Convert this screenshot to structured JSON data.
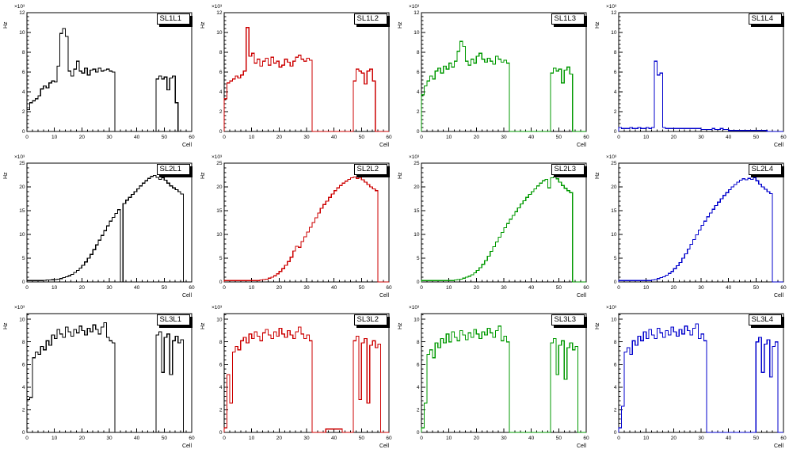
{
  "page": {
    "background": "#ffffff"
  },
  "labels": {
    "x_title": "Cell",
    "y_title": "Hz",
    "multiplier": "×10³"
  },
  "chart_data": [
    {
      "type": "bar",
      "title": "SL1L1",
      "color": "#000000",
      "xlabel": "Cell",
      "ylabel": "Hz",
      "y_scale": "×10³",
      "xlim": [
        0,
        60
      ],
      "ylim": [
        0,
        12
      ],
      "ytick": 2,
      "values": [
        2.2,
        2.9,
        3.1,
        3.3,
        3.6,
        4.3,
        4.6,
        4.4,
        4.9,
        5.1,
        5.0,
        6.6,
        9.9,
        10.4,
        9.6,
        6.1,
        5.6,
        6.3,
        7.1,
        6.1,
        5.9,
        6.4,
        5.7,
        6.2,
        6.3,
        6.0,
        6.4,
        6.1,
        6.2,
        6.3,
        6.1,
        6.0,
        0,
        0,
        0,
        0,
        0,
        0,
        0,
        0,
        0,
        0,
        0,
        0,
        0,
        0,
        0,
        5.3,
        5.6,
        5.3,
        5.5,
        4.2,
        5.4,
        5.6,
        2.9,
        0,
        0,
        0,
        0,
        0
      ]
    },
    {
      "type": "bar",
      "title": "SL1L2",
      "color": "#cc0000",
      "xlabel": "Cell",
      "ylabel": "Hz",
      "y_scale": "×10³",
      "xlim": [
        0,
        60
      ],
      "ylim": [
        0,
        12
      ],
      "ytick": 2,
      "values": [
        3.3,
        4.9,
        5.1,
        5.3,
        5.6,
        5.4,
        5.7,
        6.1,
        10.5,
        7.6,
        7.9,
        6.9,
        7.3,
        6.6,
        7.1,
        7.4,
        6.7,
        7.5,
        6.9,
        7.1,
        6.5,
        6.7,
        7.3,
        7.0,
        6.6,
        7.1,
        7.5,
        7.7,
        7.3,
        7.1,
        7.4,
        7.2,
        0,
        0,
        0,
        0,
        0,
        0,
        0,
        0,
        0,
        0,
        0,
        0,
        0,
        0,
        0,
        5.1,
        6.3,
        6.1,
        5.9,
        4.8,
        6.1,
        6.3,
        5.1,
        0,
        0,
        0,
        0,
        0
      ]
    },
    {
      "type": "bar",
      "title": "SL1L3",
      "color": "#009900",
      "xlabel": "Cell",
      "ylabel": "Hz",
      "y_scale": "×10³",
      "xlim": [
        0,
        60
      ],
      "ylim": [
        0,
        12
      ],
      "ytick": 2,
      "values": [
        3.7,
        4.6,
        5.1,
        5.6,
        5.3,
        6.1,
        6.4,
        5.9,
        6.6,
        6.3,
        6.9,
        6.5,
        7.1,
        8.1,
        9.1,
        8.6,
        7.1,
        6.7,
        7.3,
        6.9,
        7.6,
        7.9,
        7.3,
        7.0,
        7.4,
        7.1,
        6.8,
        7.6,
        7.3,
        7.0,
        7.2,
        6.9,
        0,
        0,
        0,
        0,
        0,
        0,
        0,
        0,
        0,
        0,
        0,
        0,
        0,
        0,
        0,
        5.9,
        6.4,
        6.1,
        6.3,
        4.9,
        6.2,
        6.5,
        5.8,
        0,
        0,
        0,
        0,
        0
      ]
    },
    {
      "type": "bar",
      "title": "SL1L4",
      "color": "#0000cc",
      "xlabel": "Cell",
      "ylabel": "Hz",
      "y_scale": "×10³",
      "xlim": [
        0,
        60
      ],
      "ylim": [
        0,
        12
      ],
      "ytick": 2,
      "values": [
        0.4,
        0.3,
        0.3,
        0.3,
        0.4,
        0.3,
        0.3,
        0.4,
        0.3,
        0.3,
        0.4,
        0.3,
        0.4,
        7.1,
        5.7,
        5.9,
        0.4,
        0.3,
        0.3,
        0.3,
        0.3,
        0.3,
        0.3,
        0.3,
        0.3,
        0.3,
        0.3,
        0.3,
        0.3,
        0.3,
        0.2,
        0.2,
        0.2,
        0.2,
        0.3,
        0.2,
        0.2,
        0.3,
        0.2,
        0.2,
        0.1,
        0.1,
        0.1,
        0.1,
        0.1,
        0.1,
        0.1,
        0.1,
        0.1,
        0.1,
        0.1,
        0.1,
        0.1,
        0.1,
        0,
        0,
        0,
        0,
        0,
        0
      ]
    },
    {
      "type": "bar",
      "title": "SL2L1",
      "color": "#000000",
      "xlabel": "Cell",
      "ylabel": "Hz",
      "y_scale": "×10³",
      "xlim": [
        0,
        60
      ],
      "ylim": [
        0,
        25
      ],
      "ytick": 5,
      "values": [
        0.3,
        0.3,
        0.3,
        0.3,
        0.3,
        0.3,
        0.35,
        0.4,
        0.4,
        0.45,
        0.5,
        0.6,
        0.7,
        0.9,
        1.1,
        1.3,
        1.6,
        2.0,
        2.4,
        2.9,
        3.5,
        4.2,
        5.0,
        5.8,
        6.8,
        7.8,
        8.8,
        9.8,
        10.8,
        11.8,
        12.8,
        13.6,
        14.4,
        15.2,
        0,
        16.5,
        17.2,
        17.8,
        18.4,
        19.0,
        19.6,
        20.2,
        20.8,
        21.3,
        21.8,
        22.2,
        22.4,
        22.0,
        21.6,
        21.9,
        21.4,
        20.8,
        20.2,
        19.8,
        19.4,
        19.0,
        18.5,
        0,
        0,
        0
      ]
    },
    {
      "type": "bar",
      "title": "SL2L2",
      "color": "#cc0000",
      "xlabel": "Cell",
      "ylabel": "Hz",
      "y_scale": "×10³",
      "xlim": [
        0,
        60
      ],
      "ylim": [
        0,
        25
      ],
      "ytick": 5,
      "values": [
        0.3,
        0.3,
        0.3,
        0.3,
        0.3,
        0.3,
        0.3,
        0.3,
        0.3,
        0.3,
        0.3,
        0.3,
        0.3,
        0.4,
        0.5,
        0.6,
        0.8,
        1.0,
        1.3,
        1.7,
        2.2,
        2.8,
        3.5,
        4.3,
        5.2,
        6.5,
        7.5,
        7.3,
        8.5,
        9.5,
        10.5,
        11.5,
        12.5,
        13.5,
        14.5,
        15.5,
        16.3,
        17.0,
        17.8,
        18.5,
        19.2,
        19.8,
        20.3,
        20.8,
        21.2,
        21.6,
        21.9,
        22.1,
        21.8,
        22.0,
        21.5,
        21.0,
        20.5,
        20.0,
        19.6,
        19.2,
        0,
        0,
        0,
        0
      ]
    },
    {
      "type": "bar",
      "title": "SL2L3",
      "color": "#009900",
      "xlabel": "Cell",
      "ylabel": "Hz",
      "y_scale": "×10³",
      "xlim": [
        0,
        60
      ],
      "ylim": [
        0,
        25
      ],
      "ytick": 5,
      "values": [
        0.3,
        0.3,
        0.3,
        0.3,
        0.3,
        0.3,
        0.3,
        0.3,
        0.3,
        0.3,
        0.3,
        0.3,
        0.4,
        0.5,
        0.6,
        0.8,
        1.0,
        1.2,
        1.5,
        1.9,
        2.4,
        3.0,
        3.7,
        4.5,
        5.4,
        6.4,
        7.4,
        8.4,
        9.4,
        10.4,
        11.4,
        12.3,
        13.2,
        14.0,
        14.8,
        15.6,
        16.4,
        17.1,
        17.8,
        18.4,
        19.0,
        19.6,
        20.2,
        20.8,
        21.3,
        21.6,
        19.8,
        21.9,
        22.1,
        21.7,
        21.0,
        20.3,
        19.7,
        19.2,
        18.8,
        0,
        0,
        0,
        0,
        0
      ]
    },
    {
      "type": "bar",
      "title": "SL2L4",
      "color": "#0000cc",
      "xlabel": "Cell",
      "ylabel": "Hz",
      "y_scale": "×10³",
      "xlim": [
        0,
        60
      ],
      "ylim": [
        0,
        25
      ],
      "ytick": 5,
      "values": [
        0.3,
        0.3,
        0.3,
        0.3,
        0.3,
        0.3,
        0.3,
        0.3,
        0.3,
        0.3,
        0.3,
        0.3,
        0.4,
        0.5,
        0.7,
        0.9,
        1.1,
        1.4,
        1.8,
        2.2,
        2.8,
        3.4,
        4.1,
        5.0,
        5.9,
        6.9,
        7.9,
        8.9,
        9.9,
        10.9,
        11.9,
        12.8,
        13.7,
        14.5,
        15.3,
        16.1,
        16.8,
        17.5,
        18.2,
        18.8,
        19.4,
        20.0,
        20.5,
        21.0,
        21.4,
        21.7,
        21.5,
        21.8,
        21.6,
        21.9,
        21.3,
        20.6,
        20.0,
        19.5,
        19.0,
        18.6,
        0,
        0,
        0,
        0
      ]
    },
    {
      "type": "bar",
      "title": "SL3L1",
      "color": "#000000",
      "xlabel": "Cell",
      "ylabel": "Hz",
      "y_scale": "×10³",
      "xlim": [
        0,
        60
      ],
      "ylim": [
        0,
        10.5
      ],
      "ytick": 2,
      "values": [
        2.9,
        3.1,
        6.6,
        7.1,
        6.9,
        7.6,
        7.3,
        8.1,
        7.7,
        8.6,
        8.3,
        9.1,
        8.7,
        8.4,
        9.3,
        8.9,
        8.5,
        9.1,
        8.8,
        9.4,
        9.0,
        8.6,
        9.2,
        8.9,
        9.5,
        9.1,
        8.7,
        9.3,
        9.7,
        8.4,
        8.1,
        7.9,
        0,
        0,
        0,
        0,
        0,
        0,
        0,
        0,
        0,
        0,
        0,
        0,
        0,
        0,
        0,
        8.6,
        8.9,
        5.3,
        8.4,
        8.7,
        5.1,
        8.1,
        8.5,
        7.9,
        8.2,
        0,
        0,
        0
      ]
    },
    {
      "type": "bar",
      "title": "SL3L2",
      "color": "#cc0000",
      "xlabel": "Cell",
      "ylabel": "Hz",
      "y_scale": "×10³",
      "xlim": [
        0,
        60
      ],
      "ylim": [
        0,
        10.5
      ],
      "ytick": 2,
      "values": [
        0.4,
        5.1,
        2.6,
        7.1,
        7.6,
        7.3,
        8.1,
        8.4,
        7.9,
        8.7,
        8.3,
        8.9,
        8.5,
        8.1,
        8.8,
        9.1,
        8.6,
        8.3,
        8.9,
        8.5,
        9.2,
        8.7,
        8.4,
        9.0,
        8.6,
        8.3,
        8.9,
        9.3,
        8.7,
        8.3,
        8.6,
        8.1,
        0,
        0,
        0,
        0,
        0,
        0.3,
        0.3,
        0.3,
        0.3,
        0.3,
        0.3,
        0,
        0,
        0,
        0,
        8.1,
        8.5,
        2.9,
        7.9,
        8.3,
        2.6,
        7.7,
        8.1,
        7.5,
        7.8,
        0,
        0,
        0
      ]
    },
    {
      "type": "bar",
      "title": "SL3L3",
      "color": "#009900",
      "xlabel": "Cell",
      "ylabel": "Hz",
      "y_scale": "×10³",
      "xlim": [
        0,
        60
      ],
      "ylim": [
        0,
        10.5
      ],
      "ytick": 2,
      "values": [
        0.4,
        2.6,
        6.9,
        7.3,
        6.6,
        7.9,
        7.5,
        8.3,
        7.9,
        8.7,
        8.0,
        8.9,
        8.4,
        8.1,
        9.0,
        8.6,
        8.2,
        8.8,
        8.4,
        9.1,
        8.7,
        8.3,
        8.9,
        8.6,
        9.2,
        8.8,
        8.4,
        9.0,
        9.4,
        8.1,
        8.5,
        8.0,
        0,
        0,
        0,
        0,
        0,
        0,
        0,
        0,
        0,
        0,
        0,
        0,
        0,
        0,
        0,
        7.9,
        8.3,
        5.1,
        7.7,
        8.1,
        4.7,
        7.5,
        7.9,
        7.3,
        7.6,
        0,
        0,
        0
      ]
    },
    {
      "type": "bar",
      "title": "SL3L4",
      "color": "#0000cc",
      "xlabel": "Cell",
      "ylabel": "Hz",
      "y_scale": "×10³",
      "xlim": [
        0,
        60
      ],
      "ylim": [
        0,
        10.5
      ],
      "ytick": 2,
      "values": [
        0.4,
        2.3,
        7.1,
        7.5,
        6.9,
        8.1,
        7.7,
        8.5,
        8.1,
        8.9,
        8.3,
        9.1,
        8.6,
        8.3,
        9.2,
        8.8,
        8.4,
        9.0,
        8.6,
        9.3,
        8.9,
        8.5,
        9.1,
        8.7,
        9.4,
        9.0,
        8.6,
        9.2,
        9.6,
        8.3,
        8.7,
        8.1,
        0,
        0,
        0,
        0,
        0,
        0,
        0,
        0,
        0,
        0,
        0,
        0,
        0,
        0,
        0,
        0,
        0,
        0,
        8.0,
        8.4,
        5.3,
        7.8,
        8.2,
        4.9,
        7.6,
        8.0,
        0,
        0
      ]
    }
  ]
}
